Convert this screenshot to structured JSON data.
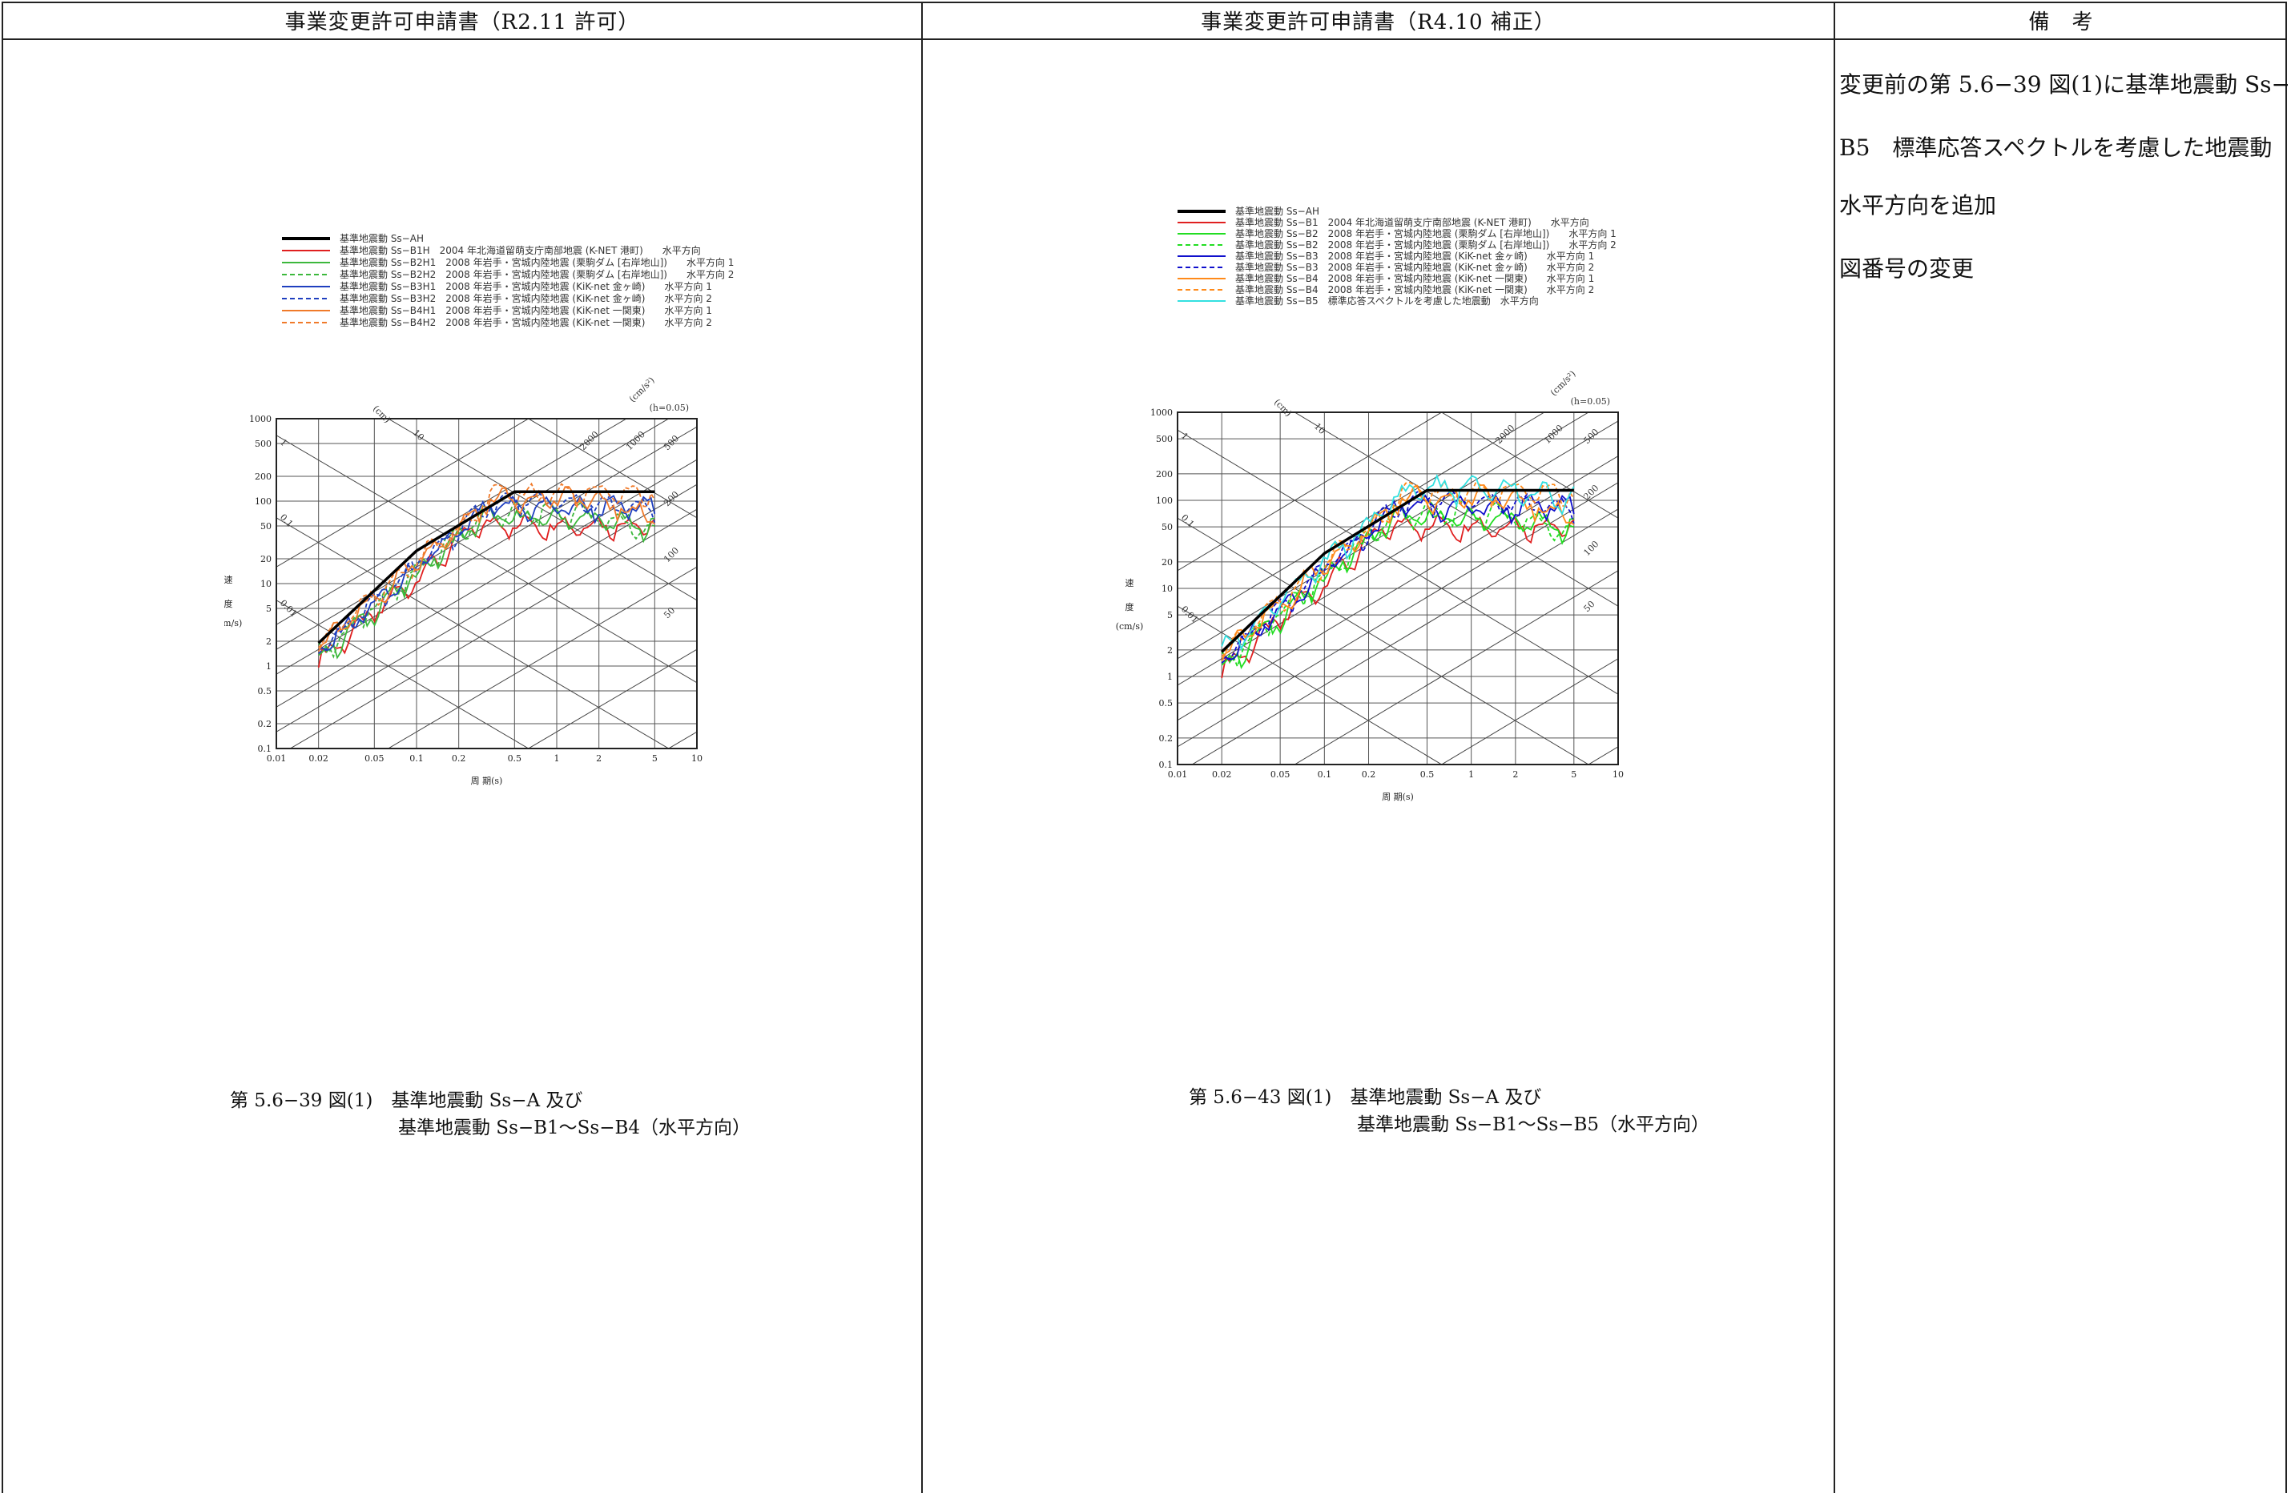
{
  "header": {
    "col1": "事業変更許可申請書（R2.11 許可）",
    "col2": "事業変更許可申請書（R4.10 補正）",
    "col3": "備　考"
  },
  "remarks": [
    "変更前の第 5.6−39 図(1)に基準地震動 Ss−",
    "B5　標準応答スペクトルを考慮した地震動",
    "水平方向を追加",
    "図番号の変更"
  ],
  "left_caption": {
    "line1": "第 5.6−39 図(1)　基準地震動 Ss−A 及び",
    "line2": "基準地震動 Ss−B1〜Ss−B4（水平方向）"
  },
  "right_caption": {
    "line1": "第 5.6−43 図(1)　基準地震動 Ss−A 及び",
    "line2": "基準地震動 Ss−B1〜Ss−B5（水平方向）"
  },
  "chart_common": {
    "ylabel": [
      "速",
      "度",
      "(cm/s)"
    ],
    "xlabel": "周 期(s)",
    "damping": "(h=0.05)",
    "disp_unit": "(cm)",
    "acc_unit": "(cm/s²)",
    "x_ticks": [
      "0.01",
      "0.02",
      "0.05",
      "0.1",
      "0.2",
      "0.5",
      "1",
      "2",
      "5",
      "10"
    ],
    "y_ticks": [
      "1000",
      "500",
      "200",
      "100",
      "50",
      "20",
      "10",
      "5",
      "2",
      "1",
      "0.5",
      "0.2",
      "0.1"
    ],
    "disp_labels": [
      "10",
      "1",
      "0.1",
      "0.01"
    ],
    "acc_labels": [
      "2000",
      "1000",
      "500",
      "200",
      "100",
      "50"
    ]
  },
  "chart_data": [
    {
      "type": "line",
      "scale": "tripartite log-log",
      "xlabel": "周 期(s)",
      "ylabel": "速度 (cm/s)",
      "xlim": [
        0.01,
        10
      ],
      "ylim": [
        0.1,
        1000
      ],
      "legend": [
        {
          "label": "基準地震動 Ss−AH",
          "color": "#000000",
          "style": "solid-bold"
        },
        {
          "label": "基準地震動 Ss−B1H　2004 年北海道留萌支庁南部地震 (K-NET 港町)　　水平方向",
          "color": "#e02020",
          "style": "solid"
        },
        {
          "label": "基準地震動 Ss−B2H1　2008 年岩手・宮城内陸地震 (栗駒ダム [右岸地山])　　水平方向 1",
          "color": "#3cb83c",
          "style": "solid"
        },
        {
          "label": "基準地震動 Ss−B2H2　2008 年岩手・宮城内陸地震 (栗駒ダム [右岸地山])　　水平方向 2",
          "color": "#3cb83c",
          "style": "dashed"
        },
        {
          "label": "基準地震動 Ss−B3H1　2008 年岩手・宮城内陸地震 (KiK-net 金ヶ崎)　　水平方向 1",
          "color": "#1f3fbf",
          "style": "solid"
        },
        {
          "label": "基準地震動 Ss−B3H2　2008 年岩手・宮城内陸地震 (KiK-net 金ヶ崎)　　水平方向 2",
          "color": "#1f3fbf",
          "style": "dashed"
        },
        {
          "label": "基準地震動 Ss−B4H1　2008 年岩手・宮城内陸地震 (KiK-net 一関東)　　水平方向 1",
          "color": "#f07a2a",
          "style": "solid"
        },
        {
          "label": "基準地震動 Ss−B4H2　2008 年岩手・宮城内陸地震 (KiK-net 一関東)　　水平方向 2",
          "color": "#f07a2a",
          "style": "dashed"
        }
      ],
      "series": [
        {
          "name": "基準地震動 Ss−AH",
          "x": [
            0.02,
            0.1,
            0.5,
            5.0
          ],
          "y": [
            1.9,
            25,
            130,
            130
          ]
        }
      ]
    },
    {
      "type": "line",
      "scale": "tripartite log-log",
      "xlabel": "周 期(s)",
      "ylabel": "速度 (cm/s)",
      "xlim": [
        0.01,
        10
      ],
      "ylim": [
        0.1,
        1000
      ],
      "legend": [
        {
          "label": "基準地震動 Ss−AH",
          "color": "#000000",
          "style": "solid-bold"
        },
        {
          "label": "基準地震動 Ss−B1　2004 年北海道留萌支庁南部地震 (K-NET 港町)　　水平方向",
          "color": "#e02020",
          "style": "solid"
        },
        {
          "label": "基準地震動 Ss−B2　2008 年岩手・宮城内陸地震 (栗駒ダム [右岸地山])　　水平方向 1",
          "color": "#22dd22",
          "style": "solid"
        },
        {
          "label": "基準地震動 Ss−B2　2008 年岩手・宮城内陸地震 (栗駒ダム [右岸地山])　　水平方向 2",
          "color": "#22dd22",
          "style": "dashed"
        },
        {
          "label": "基準地震動 Ss−B3　2008 年岩手・宮城内陸地震 (KiK-net 金ヶ崎)　　水平方向 1",
          "color": "#1010cc",
          "style": "solid"
        },
        {
          "label": "基準地震動 Ss−B3　2008 年岩手・宮城内陸地震 (KiK-net 金ヶ崎)　　水平方向 2",
          "color": "#1010cc",
          "style": "dashed"
        },
        {
          "label": "基準地震動 Ss−B4　2008 年岩手・宮城内陸地震 (KiK-net 一関東)　　水平方向 1",
          "color": "#ff8a1a",
          "style": "solid"
        },
        {
          "label": "基準地震動 Ss−B4　2008 年岩手・宮城内陸地震 (KiK-net 一関東)　　水平方向 2",
          "color": "#ff8a1a",
          "style": "dashed"
        },
        {
          "label": "基準地震動 Ss−B5　標準応答スペクトルを考慮した地震動　水平方向",
          "color": "#33e0e0",
          "style": "solid"
        }
      ],
      "series": [
        {
          "name": "基準地震動 Ss−AH",
          "x": [
            0.02,
            0.1,
            0.5,
            5.0
          ],
          "y": [
            1.9,
            25,
            130,
            130
          ]
        }
      ]
    }
  ]
}
